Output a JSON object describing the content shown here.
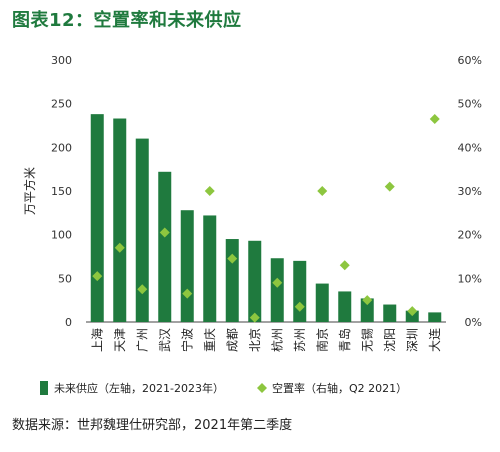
{
  "title": "图表12：空置率和未来供应",
  "source": "数据来源：世邦魏理仕研究部，2021年第二季度",
  "chart_data": {
    "type": "bar",
    "categories": [
      "上海",
      "天津",
      "广州",
      "武汉",
      "宁波",
      "重庆",
      "成都",
      "北京",
      "杭州",
      "苏州",
      "南京",
      "青岛",
      "无锡",
      "沈阳",
      "深圳",
      "大连"
    ],
    "series": [
      {
        "name": "未来供应（左轴，2021-2023年）",
        "type": "bar",
        "axis": "left",
        "values": [
          238,
          233,
          210,
          172,
          128,
          122,
          95,
          93,
          73,
          70,
          44,
          35,
          27,
          20,
          13,
          11
        ],
        "color": "#1f7a3e"
      },
      {
        "name": "空置率（右轴，Q2 2021）",
        "type": "scatter",
        "axis": "right",
        "values": [
          10.5,
          17,
          7.5,
          20.5,
          6.5,
          30,
          14.5,
          1,
          9,
          3.5,
          30,
          13,
          5,
          31,
          2.5,
          46.5
        ],
        "color": "#8dc63f"
      }
    ],
    "ylabel": "万平方米",
    "ylim": [
      0,
      300
    ],
    "yticks": [
      0,
      50,
      100,
      150,
      200,
      250,
      300
    ],
    "y2lim": [
      0,
      60
    ],
    "y2ticks": [
      "0%",
      "10%",
      "20%",
      "30%",
      "40%",
      "50%",
      "60%"
    ],
    "grid": false,
    "legend_position": "bottom"
  }
}
